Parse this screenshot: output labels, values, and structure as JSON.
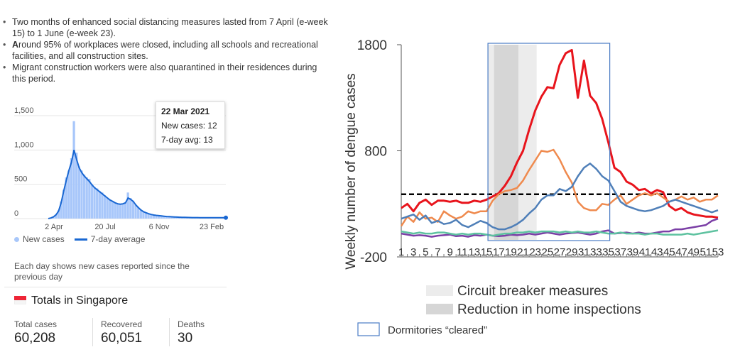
{
  "bullets": [
    {
      "bold": "",
      "text": "Two months of enhanced social distancing measures lasted from 7 April (e-week 15) to 1 June (e-week 23)."
    },
    {
      "bold": "A",
      "text": "round 95% of workplaces were closed, including all schools and recreational facilities, and all construction sites."
    },
    {
      "bold": "",
      "text": "Migrant construction workers were also quarantined in their residences during this period."
    }
  ],
  "tooltip": {
    "date": "22 Mar 2021",
    "new_cases": "New cases: 12",
    "avg": "7-day avg: 13"
  },
  "mini_legend": {
    "new_cases": "New cases",
    "avg": "7-day average"
  },
  "note": "Each day shows new cases reported since the previous day",
  "totals": {
    "title": "Totals in Singapore",
    "stats": [
      {
        "label": "Total cases",
        "value": "60,208"
      },
      {
        "label": "Recovered",
        "value": "60,051"
      },
      {
        "label": "Deaths",
        "value": "30"
      }
    ]
  },
  "colors": {
    "bars": "#a8c7fa",
    "avg_line": "#1967d2",
    "red": "#e8141c",
    "orange": "#ef8a4e",
    "blue": "#4f7fb8",
    "purple": "#7b3fa6",
    "green": "#5ec2a0"
  },
  "chart_data": [
    {
      "type": "area",
      "title": "",
      "y_ticks": [
        "1,500",
        "1,000",
        "500",
        "0"
      ],
      "ylim": [
        0,
        1500
      ],
      "x_ticks": [
        "2 Apr",
        "20 Jul",
        "6 Nov",
        "23 Feb"
      ],
      "series": [
        {
          "name": "New cases",
          "values": [
            0,
            10,
            30,
            60,
            120,
            250,
            420,
            600,
            700,
            880,
            1420,
            960,
            760,
            700,
            640,
            600,
            580,
            500,
            460,
            440,
            400,
            380,
            340,
            300,
            280,
            260,
            230,
            220,
            210,
            220,
            240,
            380,
            300,
            260,
            200,
            160,
            120,
            100,
            90,
            70,
            60,
            55,
            50,
            45,
            40,
            35,
            30,
            30,
            28,
            25,
            22,
            20,
            20,
            18,
            18,
            16,
            15,
            14,
            14,
            13,
            12,
            12,
            12,
            12,
            12,
            12,
            12,
            13,
            13,
            12
          ]
        },
        {
          "name": "7-day average",
          "values": [
            0,
            8,
            25,
            55,
            110,
            230,
            400,
            560,
            700,
            820,
            1000,
            860,
            740,
            670,
            620,
            580,
            540,
            490,
            450,
            420,
            390,
            360,
            330,
            300,
            270,
            250,
            230,
            215,
            210,
            215,
            230,
            300,
            280,
            250,
            200,
            160,
            125,
            100,
            85,
            70,
            60,
            52,
            47,
            42,
            38,
            34,
            30,
            28,
            26,
            24,
            22,
            20,
            19,
            18,
            17,
            16,
            15,
            14,
            14,
            13,
            13,
            13,
            12,
            12,
            12,
            12,
            12,
            13,
            13,
            13
          ]
        }
      ]
    },
    {
      "type": "line",
      "title": "",
      "xlabel": "",
      "ylabel": "Weekly number of dengue cases",
      "ylim": [
        -200,
        1800
      ],
      "y_ticks": [
        "1800",
        "800",
        "-200"
      ],
      "y_tick_values": [
        1800,
        800,
        -200
      ],
      "x": [
        1,
        2,
        3,
        4,
        5,
        6,
        7,
        8,
        9,
        10,
        11,
        12,
        13,
        14,
        15,
        16,
        17,
        18,
        19,
        20,
        21,
        22,
        23,
        24,
        25,
        26,
        27,
        28,
        29,
        30,
        31,
        32,
        33,
        34,
        35,
        36,
        37,
        38,
        39,
        40,
        41,
        42,
        43,
        44,
        45,
        46,
        47,
        48,
        49,
        50,
        51,
        52,
        53
      ],
      "x_tick_labels": [
        "1",
        "3",
        "5",
        "7",
        "9",
        "11",
        "13",
        "15",
        "17",
        "19",
        "21",
        "23",
        "25",
        "27",
        "29",
        "31",
        "33",
        "35",
        "37",
        "39",
        "41",
        "43",
        "45",
        "47",
        "49",
        "51",
        "53"
      ],
      "x_tick_values": [
        1,
        3,
        5,
        7,
        9,
        11,
        13,
        15,
        17,
        19,
        21,
        23,
        25,
        27,
        29,
        31,
        33,
        35,
        37,
        39,
        41,
        43,
        45,
        47,
        49,
        51,
        53
      ],
      "series": [
        {
          "name": "red",
          "values": [
            260,
            300,
            230,
            310,
            340,
            290,
            330,
            330,
            320,
            330,
            310,
            310,
            330,
            320,
            340,
            370,
            400,
            470,
            560,
            690,
            800,
            1000,
            1180,
            1310,
            1400,
            1390,
            1610,
            1720,
            1750,
            1300,
            1650,
            1320,
            1250,
            1100,
            880,
            640,
            600,
            510,
            480,
            430,
            440,
            400,
            430,
            410,
            280,
            240,
            260,
            220,
            200,
            190,
            180,
            180,
            170
          ]
        },
        {
          "name": "orange",
          "values": [
            90,
            180,
            130,
            220,
            160,
            170,
            130,
            230,
            190,
            160,
            180,
            230,
            210,
            230,
            230,
            330,
            390,
            420,
            430,
            450,
            520,
            620,
            710,
            800,
            790,
            810,
            720,
            600,
            500,
            320,
            260,
            240,
            240,
            300,
            290,
            340,
            380,
            300,
            340,
            380,
            400,
            380,
            400,
            360,
            320,
            340,
            370,
            340,
            360,
            320,
            340,
            340,
            380
          ]
        },
        {
          "name": "blue",
          "values": [
            160,
            180,
            200,
            150,
            190,
            120,
            140,
            110,
            120,
            150,
            100,
            80,
            110,
            140,
            120,
            80,
            60,
            60,
            80,
            110,
            150,
            210,
            260,
            340,
            380,
            380,
            440,
            420,
            460,
            560,
            640,
            680,
            630,
            560,
            520,
            420,
            320,
            280,
            260,
            240,
            230,
            240,
            260,
            280,
            320,
            340,
            320,
            300,
            280,
            260,
            240,
            220,
            240
          ]
        },
        {
          "name": "purple",
          "values": [
            20,
            10,
            0,
            5,
            0,
            -10,
            0,
            5,
            10,
            -5,
            0,
            -10,
            5,
            0,
            10,
            0,
            -5,
            0,
            10,
            5,
            10,
            20,
            10,
            20,
            30,
            20,
            10,
            20,
            25,
            30,
            20,
            10,
            20,
            40,
            50,
            20,
            25,
            30,
            20,
            30,
            20,
            20,
            30,
            40,
            40,
            60,
            60,
            70,
            80,
            90,
            100,
            140,
            160
          ]
        },
        {
          "name": "green",
          "values": [
            40,
            30,
            20,
            30,
            20,
            20,
            30,
            30,
            20,
            10,
            20,
            10,
            20,
            20,
            10,
            0,
            10,
            20,
            20,
            30,
            30,
            40,
            30,
            40,
            40,
            40,
            30,
            40,
            30,
            40,
            30,
            30,
            40,
            30,
            20,
            20,
            30,
            20,
            20,
            20,
            10,
            20,
            20,
            10,
            10,
            10,
            10,
            20,
            10,
            20,
            30,
            40,
            50
          ]
        }
      ],
      "threshold": {
        "name": "threshold",
        "value": 390,
        "style": "dashed"
      },
      "shaded_light": {
        "label": "Circuit breaker measures",
        "from": 15,
        "to": 23
      },
      "shaded_dark": {
        "label": "Reduction in home inspections",
        "from": 16,
        "to": 20
      },
      "box": {
        "label": "Dormitories “cleared”",
        "from": 15,
        "to": 35
      }
    }
  ]
}
